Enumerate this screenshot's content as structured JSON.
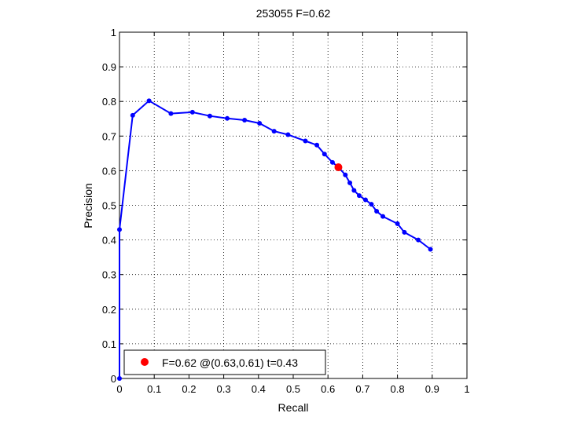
{
  "chart_data": {
    "type": "line",
    "title": "253055 F=0.62",
    "xlabel": "Recall",
    "ylabel": "Precision",
    "xlim": [
      0,
      1
    ],
    "ylim": [
      0,
      1
    ],
    "grid": true,
    "x_ticks": [
      "0",
      "0.1",
      "0.2",
      "0.3",
      "0.4",
      "0.5",
      "0.6",
      "0.7",
      "0.8",
      "0.9",
      "1"
    ],
    "y_ticks": [
      "0",
      "0.1",
      "0.2",
      "0.3",
      "0.4",
      "0.5",
      "0.6",
      "0.7",
      "0.8",
      "0.9",
      "1"
    ],
    "series": [
      {
        "color": "#0000ff",
        "points": [
          [
            0.0,
            0.0
          ],
          [
            0.0,
            0.43
          ],
          [
            0.038,
            0.76
          ],
          [
            0.085,
            0.802
          ],
          [
            0.148,
            0.765
          ],
          [
            0.21,
            0.769
          ],
          [
            0.26,
            0.758
          ],
          [
            0.31,
            0.751
          ],
          [
            0.36,
            0.746
          ],
          [
            0.403,
            0.737
          ],
          [
            0.445,
            0.714
          ],
          [
            0.485,
            0.704
          ],
          [
            0.535,
            0.686
          ],
          [
            0.568,
            0.674
          ],
          [
            0.59,
            0.648
          ],
          [
            0.613,
            0.624
          ],
          [
            0.63,
            0.61
          ],
          [
            0.65,
            0.588
          ],
          [
            0.663,
            0.565
          ],
          [
            0.675,
            0.543
          ],
          [
            0.69,
            0.528
          ],
          [
            0.708,
            0.516
          ],
          [
            0.725,
            0.503
          ],
          [
            0.74,
            0.483
          ],
          [
            0.758,
            0.468
          ],
          [
            0.8,
            0.447
          ],
          [
            0.82,
            0.422
          ],
          [
            0.86,
            0.4
          ],
          [
            0.895,
            0.373
          ]
        ]
      }
    ],
    "highlight": {
      "x": 0.63,
      "y": 0.61,
      "color": "#ff0000"
    },
    "legend": {
      "position": "bottom-left",
      "label": "F=0.62 @(0.63,0.61) t=0.43"
    }
  }
}
